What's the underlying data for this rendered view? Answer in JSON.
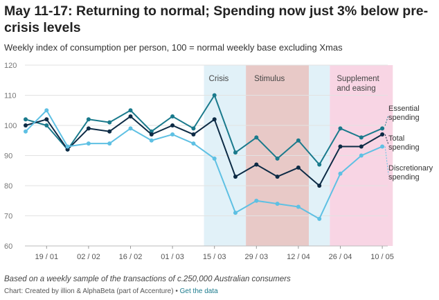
{
  "header": {
    "title": "May 11-17: Returning to normal; Spending now just 3% below pre-crisis levels",
    "subtitle": "Weekly index of consumption per person, 100 = normal weekly base excluding Xmas"
  },
  "footer": {
    "note": "Based on a weekly sample of the transactions of c.250,000 Australian consumers",
    "credit": "Chart: Created by illion & AlphaBeta (part of Accenture)",
    "separator": " • ",
    "link": "Get the data"
  },
  "chart_data": {
    "type": "line",
    "title": "",
    "xlabel": "",
    "ylabel": "",
    "ylim": [
      60,
      120
    ],
    "yticks": [
      60,
      70,
      80,
      90,
      100,
      110,
      120
    ],
    "grid": true,
    "legend": "direct labels at right end of lines",
    "xtick_labels": [
      "19 / 01",
      "02 / 02",
      "16 / 02",
      "01 / 03",
      "15 / 03",
      "29 / 03",
      "12 / 04",
      "26 / 04",
      "10 / 05"
    ],
    "xtick_positions": [
      1,
      3,
      5,
      7,
      9,
      11,
      13,
      15,
      17
    ],
    "x": [
      0,
      1,
      2,
      3,
      4,
      5,
      6,
      7,
      8,
      9,
      10,
      11,
      12,
      13,
      14,
      15,
      16,
      17
    ],
    "series": [
      {
        "name": "Essential spending",
        "color": "#1a7a8c",
        "values": [
          102,
          100,
          92,
          102,
          101,
          105,
          98,
          103,
          99,
          110,
          91,
          96,
          89,
          95,
          87,
          99,
          96,
          99
        ]
      },
      {
        "name": "Total spending",
        "color": "#0d2b45",
        "values": [
          100,
          102,
          92,
          99,
          98,
          103,
          97,
          100,
          97,
          102,
          83,
          87,
          83,
          86,
          80,
          93,
          93,
          97
        ]
      },
      {
        "name": "Discretionary spending",
        "color": "#5ec0e3",
        "values": [
          98,
          105,
          93,
          94,
          94,
          99,
          95,
          97,
          94,
          89,
          71,
          75,
          74,
          73,
          69,
          84,
          90,
          93
        ]
      }
    ],
    "bands": [
      {
        "label": "Crisis",
        "from": 8.5,
        "to": 10.5,
        "color": "#e1f1f8"
      },
      {
        "label": "Stimulus",
        "from": 10.5,
        "to": 13.5,
        "color": "#e8c9c7"
      },
      {
        "label": "",
        "from": 13.5,
        "to": 14.5,
        "color": "#e1f1f8"
      },
      {
        "label": "Supplement and easing",
        "from": 14.5,
        "to": 17.5,
        "color": "#f8d5e4"
      }
    ]
  }
}
